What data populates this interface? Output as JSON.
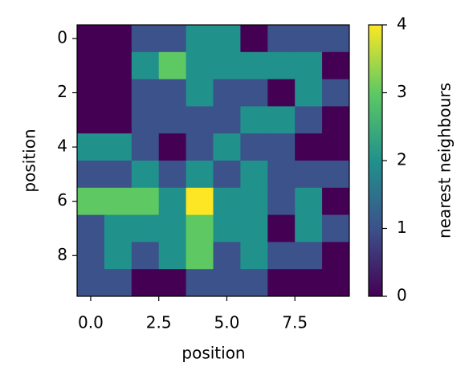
{
  "chart_data": {
    "type": "heatmap",
    "xlabel": "position",
    "ylabel": "position",
    "colorbar_label": "nearest neighbours",
    "values": [
      [
        0,
        0,
        1,
        1,
        2,
        2,
        0,
        1,
        1,
        1
      ],
      [
        0,
        0,
        2,
        3,
        2,
        2,
        2,
        2,
        2,
        0
      ],
      [
        0,
        0,
        1,
        1,
        2,
        1,
        1,
        0,
        2,
        1
      ],
      [
        0,
        0,
        1,
        1,
        1,
        1,
        2,
        2,
        1,
        0
      ],
      [
        2,
        2,
        1,
        0,
        1,
        2,
        1,
        1,
        0,
        0
      ],
      [
        1,
        1,
        2,
        1,
        2,
        1,
        2,
        1,
        1,
        1
      ],
      [
        3,
        3,
        3,
        2,
        4,
        2,
        2,
        1,
        2,
        0
      ],
      [
        1,
        2,
        2,
        2,
        3,
        2,
        2,
        0,
        2,
        1
      ],
      [
        1,
        2,
        1,
        2,
        3,
        1,
        2,
        1,
        1,
        0
      ],
      [
        1,
        1,
        0,
        0,
        1,
        1,
        1,
        0,
        0,
        0
      ]
    ],
    "xlim": [
      -0.5,
      9.5
    ],
    "ylim": [
      9.5,
      -0.5
    ],
    "xticks": [
      {
        "value": 0,
        "label": "0.0"
      },
      2.5,
      {
        "value": 5,
        "label": "5.0"
      },
      7.5
    ],
    "yticks": [
      0,
      2,
      4,
      6,
      8
    ],
    "clim": [
      0,
      4
    ],
    "cticks": [
      0,
      1,
      2,
      3,
      4
    ],
    "colormap": [
      "#440154",
      "#3b528b",
      "#21918c",
      "#5ec962",
      "#fde725"
    ]
  }
}
